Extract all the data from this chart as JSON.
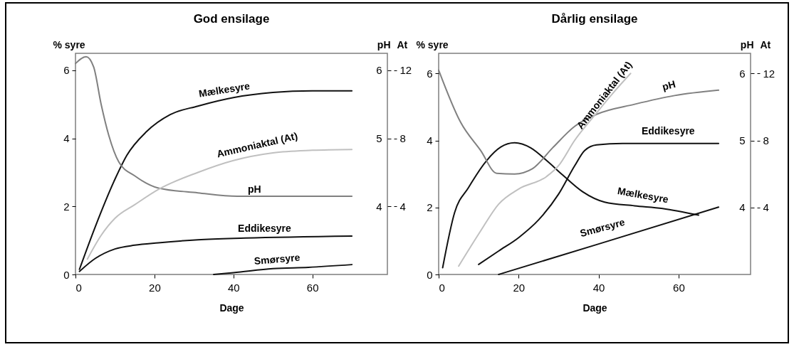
{
  "chart_data": [
    {
      "type": "line",
      "title": "God ensilage",
      "xlabel": "Dage",
      "ylabel": "% syre",
      "y2label": "pH",
      "y3label": "At",
      "xlim": [
        0,
        79
      ],
      "xticks": [
        0,
        20,
        40,
        60
      ],
      "ylim": [
        0,
        6.5
      ],
      "yticks": [
        0,
        2,
        4,
        6
      ],
      "y2lim": [
        3,
        6.25
      ],
      "y2ticks": [
        4,
        5,
        6
      ],
      "y3lim": [
        0,
        13
      ],
      "y3ticks": [
        4,
        8,
        12
      ],
      "grid": false,
      "legend": false,
      "series": [
        {
          "name": "Mælkesyre",
          "color": "#111111",
          "x": [
            1,
            5,
            10,
            13,
            18,
            24,
            31,
            40,
            50,
            60,
            70
          ],
          "values": [
            0.15,
            1.4,
            2.8,
            3.5,
            4.2,
            4.7,
            4.95,
            5.2,
            5.35,
            5.4,
            5.4
          ]
        },
        {
          "name": "Ammoniaktal (At)",
          "color": "#c0c0c0",
          "axis": "y3",
          "x": [
            3,
            6.5,
            10,
            15,
            21,
            31,
            40,
            50,
            60,
            70
          ],
          "values": [
            0.9,
            2.3,
            3.3,
            4.1,
            5,
            6,
            6.7,
            7.15,
            7.3,
            7.35
          ]
        },
        {
          "name": "pH",
          "color": "#808080",
          "axis": "y2",
          "x": [
            0,
            2.7,
            4.6,
            6.5,
            8.4,
            11,
            15,
            21,
            31,
            41,
            55,
            70
          ],
          "values": [
            6.1,
            6.2,
            6.05,
            5.5,
            5.05,
            4.65,
            4.45,
            4.27,
            4.2,
            4.15,
            4.15,
            4.15
          ]
        },
        {
          "name": "Eddikesyre",
          "color": "#111111",
          "x": [
            1,
            5,
            10,
            15,
            21,
            31,
            43,
            70
          ],
          "values": [
            0.09,
            0.47,
            0.75,
            0.86,
            0.93,
            1.02,
            1.07,
            1.13
          ]
        },
        {
          "name": "Smørsyre",
          "color": "#111111",
          "x": [
            35,
            40,
            50,
            59,
            70
          ],
          "values": [
            0,
            0.05,
            0.17,
            0.21,
            0.29
          ]
        }
      ]
    },
    {
      "type": "line",
      "title": "Dårlig ensilage",
      "xlabel": "Dage",
      "ylabel": "% syre",
      "y2label": "pH",
      "y3label": "At",
      "xlim": [
        0,
        78
      ],
      "xticks": [
        0,
        20,
        40,
        60
      ],
      "ylim": [
        0,
        6.6
      ],
      "yticks": [
        0,
        2,
        4,
        6
      ],
      "y2lim": [
        3,
        6.3
      ],
      "y2ticks": [
        4,
        5,
        6
      ],
      "y3lim": [
        0,
        13.2
      ],
      "y3ticks": [
        4,
        8,
        12
      ],
      "grid": false,
      "legend": false,
      "series": [
        {
          "name": "Mælkesyre",
          "color": "#111111",
          "x": [
            1,
            4,
            7.5,
            12,
            15.5,
            19,
            23,
            27,
            31,
            36,
            41.5,
            49,
            56,
            65
          ],
          "values": [
            0.2,
            1.85,
            2.6,
            3.4,
            3.8,
            3.93,
            3.78,
            3.4,
            2.97,
            2.47,
            2.16,
            2.05,
            1.97,
            1.77
          ]
        },
        {
          "name": "Ammoniaktal (At)",
          "color": "#c0c0c0",
          "axis": "y3",
          "x": [
            5,
            10.5,
            15,
            20,
            27,
            30,
            34,
            39,
            43.5,
            48
          ],
          "values": [
            0.5,
            2.6,
            4.2,
            5.1,
            5.85,
            6.5,
            8,
            9.5,
            10.8,
            12
          ]
        },
        {
          "name": "pH",
          "color": "#808080",
          "axis": "y2",
          "x": [
            0,
            5.5,
            10.5,
            14.5,
            19,
            23.5,
            28.5,
            34,
            39.5,
            49,
            59,
            70
          ],
          "values": [
            6.05,
            5.27,
            4.85,
            4.51,
            4.5,
            4.58,
            4.89,
            5.21,
            5.39,
            5.54,
            5.67,
            5.75
          ]
        },
        {
          "name": "Eddikesyre",
          "color": "#111111",
          "x": [
            10,
            15,
            20,
            25,
            30,
            34,
            36.5,
            39.5,
            46,
            70
          ],
          "values": [
            0.3,
            0.7,
            1.1,
            1.63,
            2.4,
            3.24,
            3.7,
            3.87,
            3.91,
            3.91
          ]
        },
        {
          "name": "Smørsyre",
          "color": "#111111",
          "x": [
            15,
            40,
            70
          ],
          "values": [
            0,
            0.91,
            2.01
          ]
        }
      ]
    }
  ]
}
